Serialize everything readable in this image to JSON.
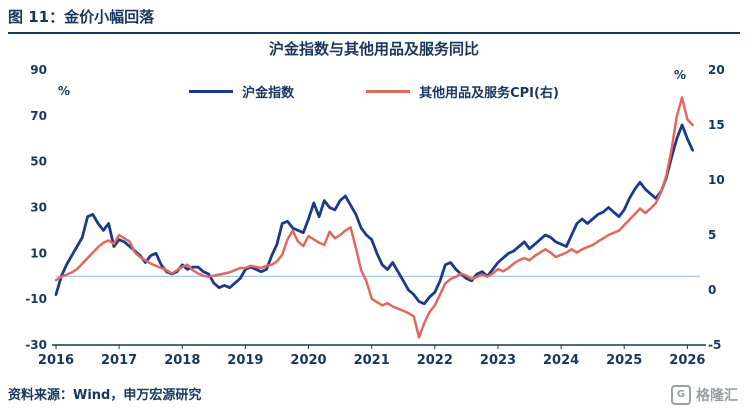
{
  "header": {
    "title": "图 11：金价小幅回落"
  },
  "footer": {
    "source": "资料来源：Wind，申万宏源研究"
  },
  "watermark": {
    "icon": "G",
    "text": "格隆汇"
  },
  "chart_data": {
    "type": "line",
    "title": "沪金指数与其他用品及服务同比",
    "left_axis": {
      "label": "%",
      "range": [
        -30,
        90
      ],
      "ticks": [
        90,
        70,
        50,
        30,
        10,
        -10,
        -30
      ]
    },
    "right_axis": {
      "label": "%",
      "range": [
        -5,
        20
      ],
      "ticks": [
        20,
        15,
        10,
        5,
        0,
        -5
      ]
    },
    "x_axis": {
      "range": [
        2016,
        2026.2
      ],
      "ticks": [
        2016,
        2017,
        2018,
        2019,
        2020,
        2021,
        2022,
        2023,
        2024,
        2025,
        2026
      ]
    },
    "x_start": 2016,
    "x_step_months": 1,
    "axis_color": "#17375E",
    "zero_line": {
      "axis": "left",
      "value": 0,
      "color": "#9DC3E6"
    },
    "series": [
      {
        "name": "沪金指数",
        "axis": "left",
        "color": "#1B3A8C",
        "values": [
          -8,
          0,
          5,
          9,
          13,
          17,
          26,
          27,
          23,
          20,
          23,
          13,
          16,
          15,
          13,
          11,
          9,
          6,
          9,
          10,
          5,
          2,
          1,
          2,
          5,
          3,
          4,
          4,
          2,
          1,
          -3,
          -5,
          -4,
          -5,
          -3,
          -1,
          3,
          4,
          3,
          2,
          3,
          9,
          14,
          23,
          24,
          21,
          20,
          19,
          25,
          32,
          26,
          33,
          30,
          29,
          33,
          35,
          31,
          27,
          21,
          18,
          16,
          10,
          5,
          3,
          6,
          2,
          -2,
          -6,
          -8,
          -11,
          -12,
          -9,
          -7,
          -2,
          5,
          6,
          3,
          1,
          -1,
          -2,
          1,
          2,
          0,
          3,
          6,
          8,
          10,
          11,
          13,
          15,
          12,
          14,
          16,
          18,
          17,
          15,
          14,
          13,
          18,
          23,
          25,
          23,
          25,
          27,
          28,
          30,
          28,
          26,
          29,
          34,
          38,
          41,
          38,
          36,
          34,
          37,
          43,
          52,
          60,
          66,
          60,
          55
        ]
      },
      {
        "name": "其他用品及服务CPI(右)",
        "axis": "right",
        "color": "#E2685C",
        "values": [
          0.9,
          1.2,
          1.4,
          1.6,
          1.9,
          2.4,
          2.9,
          3.4,
          3.9,
          4.3,
          4.5,
          4.2,
          5.0,
          4.7,
          4.4,
          3.4,
          3.0,
          2.7,
          2.4,
          2.2,
          2.0,
          1.8,
          1.5,
          1.8,
          2.1,
          2.3,
          1.8,
          1.5,
          1.3,
          1.2,
          1.3,
          1.4,
          1.5,
          1.6,
          1.8,
          2.0,
          2.0,
          2.2,
          2.1,
          2.0,
          2.2,
          2.3,
          2.6,
          3.2,
          4.6,
          5.4,
          4.4,
          4.0,
          4.9,
          4.6,
          4.3,
          4.1,
          5.3,
          4.7,
          5.0,
          5.4,
          5.7,
          3.8,
          1.8,
          0.8,
          -0.8,
          -1.1,
          -1.4,
          -1.2,
          -1.5,
          -1.7,
          -1.9,
          -2.1,
          -2.4,
          -4.3,
          -3.0,
          -2.0,
          -1.4,
          -0.4,
          0.6,
          1.0,
          1.2,
          1.5,
          1.3,
          1.0,
          1.2,
          1.4,
          1.2,
          1.5,
          1.9,
          1.7,
          2.0,
          2.4,
          2.7,
          2.9,
          2.7,
          3.1,
          3.4,
          3.7,
          3.4,
          3.0,
          3.2,
          3.4,
          3.7,
          3.4,
          3.7,
          3.9,
          4.1,
          4.4,
          4.7,
          5.0,
          5.2,
          5.4,
          5.9,
          6.4,
          6.9,
          7.4,
          7.0,
          7.4,
          7.9,
          8.9,
          10.4,
          12.8,
          15.8,
          17.5,
          15.5,
          15.0
        ]
      }
    ]
  }
}
